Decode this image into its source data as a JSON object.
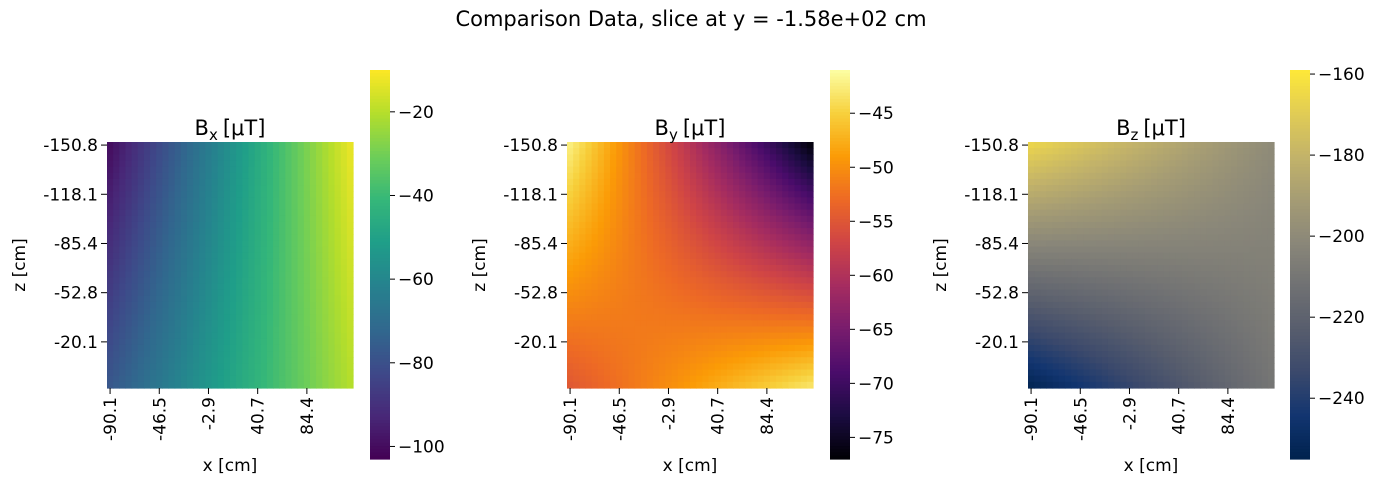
{
  "figure": {
    "suptitle": "Comparison Data, slice at y = -1.58e+02 cm"
  },
  "chart_data": [
    {
      "type": "heatmap",
      "title_base": "B",
      "title_sub": "x",
      "title_unit": "[μT]",
      "xlabel": "x [cm]",
      "ylabel": "z [cm]",
      "xticks": [
        "-90.1",
        "-46.5",
        "-2.9",
        "40.7",
        "84.4"
      ],
      "yticks": [
        "-150.8",
        "-118.1",
        "-85.4",
        "-52.8",
        "-20.1"
      ],
      "colormap": "viridis",
      "colorbar_range": [
        -103,
        -10
      ],
      "colorbar_ticks": [
        -20,
        -40,
        -60,
        -80,
        -100
      ],
      "corner_values": {
        "top_left": -101,
        "top_right": -12,
        "bottom_left": -78,
        "bottom_right": -20
      }
    },
    {
      "type": "heatmap",
      "title_base": "B",
      "title_sub": "y",
      "title_unit": "[μT]",
      "xlabel": "x [cm]",
      "ylabel": "z [cm]",
      "xticks": [
        "-90.1",
        "-46.5",
        "-2.9",
        "40.7",
        "84.4"
      ],
      "yticks": [
        "-150.8",
        "-118.1",
        "-85.4",
        "-52.8",
        "-20.1"
      ],
      "colormap": "inferno",
      "colorbar_range": [
        -77,
        -41
      ],
      "colorbar_ticks": [
        -45,
        -50,
        -55,
        -60,
        -65,
        -70,
        -75
      ],
      "corner_values": {
        "top_left": -42,
        "top_right": -77,
        "bottom_left": -55,
        "bottom_right": -43
      }
    },
    {
      "type": "heatmap",
      "title_base": "B",
      "title_sub": "z",
      "title_unit": "[μT]",
      "xlabel": "x [cm]",
      "ylabel": "z [cm]",
      "xticks": [
        "-90.1",
        "-46.5",
        "-2.9",
        "40.7",
        "84.4"
      ],
      "yticks": [
        "-150.8",
        "-118.1",
        "-85.4",
        "-52.8",
        "-20.1"
      ],
      "colormap": "cividis",
      "colorbar_range": [
        -255,
        -159
      ],
      "colorbar_ticks": [
        -160,
        -180,
        -200,
        -220,
        -240
      ],
      "corner_values": {
        "top_left": -165,
        "top_right": -200,
        "bottom_left": -254,
        "bottom_right": -210
      }
    }
  ]
}
